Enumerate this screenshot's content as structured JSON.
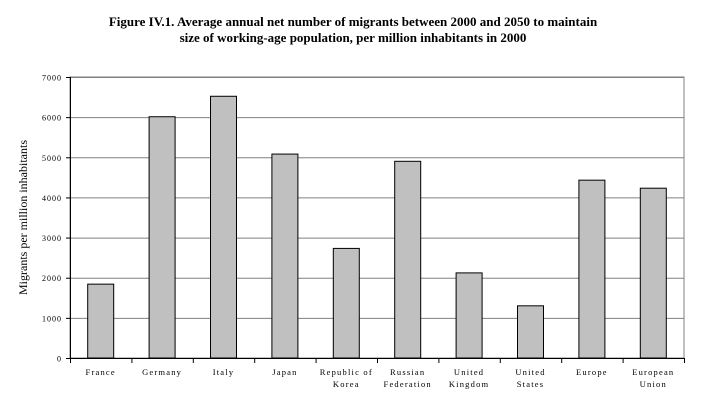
{
  "title_lines": [
    "Figure IV.1.  Average annual net number of migrants between 2000 and 2050 to maintain",
    "size of working-age population, per million inhabitants in 2000"
  ],
  "chart_data": {
    "type": "bar",
    "title": "Figure IV.1.  Average annual net number of migrants between 2000 and 2050 to maintain size of working-age population, per million inhabitants in 2000",
    "xlabel": "",
    "ylabel": "Migrants per million inhabitants",
    "ylim": [
      0,
      7000
    ],
    "yticks": [
      0,
      1000,
      2000,
      3000,
      4000,
      5000,
      6000,
      7000
    ],
    "ytick_labels": [
      "0",
      "1000",
      "2000",
      "3000",
      "4000",
      "5000",
      "6000",
      "7000"
    ],
    "grid": true,
    "legend": "none",
    "bar_color": "#c0c0c0",
    "categories": [
      [
        "France"
      ],
      [
        "Germany"
      ],
      [
        "Italy"
      ],
      [
        "Japan"
      ],
      [
        "Republic of",
        "Korea"
      ],
      [
        "Russian",
        "Federation"
      ],
      [
        "United",
        "Kingdom"
      ],
      [
        "United",
        "States"
      ],
      [
        "Europe"
      ],
      [
        "European",
        "Union"
      ]
    ],
    "values": [
      1840,
      6010,
      6520,
      5080,
      2730,
      4900,
      2120,
      1300,
      4430,
      4230
    ]
  }
}
